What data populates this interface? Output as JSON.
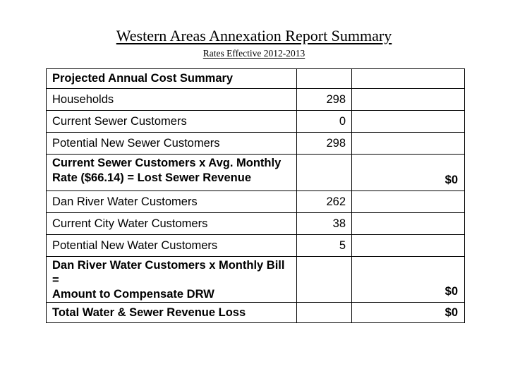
{
  "slide": {
    "title": "Western Areas Annexation Report Summary",
    "subtitle": "Rates Effective 2012-2013"
  },
  "colors": {
    "text": "#000000",
    "table_border": "#000000",
    "background": "#ffffff"
  },
  "table": {
    "rows": [
      {
        "label": "Projected Annual Cost Summary",
        "value": "",
        "amount": ""
      },
      {
        "label": "Households",
        "value": "298",
        "amount": ""
      },
      {
        "label": "Current Sewer Customers",
        "value": "0",
        "amount": ""
      },
      {
        "label": "Potential New Sewer Customers",
        "value": "298",
        "amount": ""
      },
      {
        "label": "Current Sewer Customers x Avg. Monthly\nRate ($66.14) = Lost Sewer Revenue",
        "value": "",
        "amount": "$0"
      },
      {
        "label": "Dan River Water Customers",
        "value": "262",
        "amount": ""
      },
      {
        "label": "Current City Water Customers",
        "value": "38",
        "amount": ""
      },
      {
        "label": "Potential New Water Customers",
        "value": "5",
        "amount": ""
      },
      {
        "label": "Dan River Water Customers x Monthly Bill =\nAmount to Compensate DRW",
        "value": "",
        "amount": "$0"
      },
      {
        "label": "Total Water & Sewer Revenue Loss",
        "value": "",
        "amount": "$0"
      }
    ]
  }
}
